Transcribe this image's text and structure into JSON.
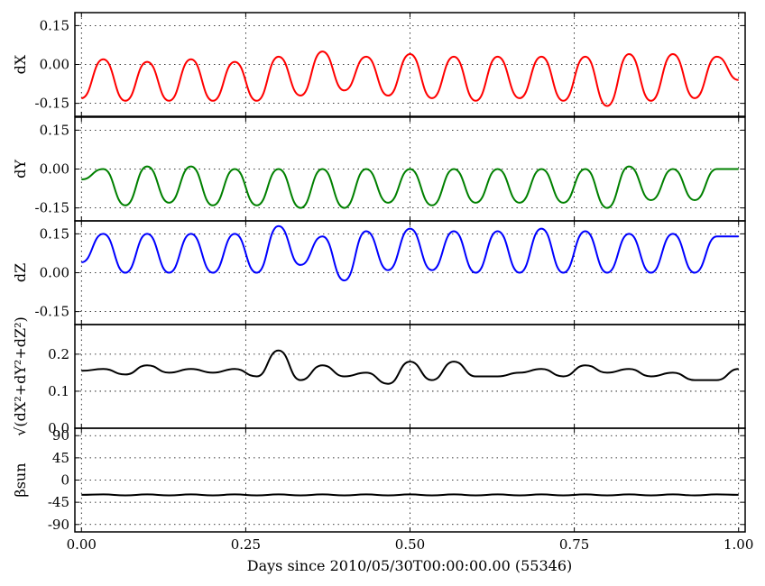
{
  "chart_data": {
    "type": "line",
    "xlabel": "Days since 2010/05/30T00:00:00.00 (55346)",
    "x_ticks": [
      "0.00",
      "0.25",
      "0.50",
      "0.75",
      "1.00"
    ],
    "xlim": [
      -0.01,
      1.01
    ],
    "grid": true,
    "panels": [
      {
        "ylabel": "dX",
        "ylim": [
          -0.2,
          0.2
        ],
        "y_ticks": [
          "0.15",
          "0.00",
          "-0.15"
        ],
        "y_tick_values": [
          0.15,
          0.0,
          -0.15
        ],
        "color": "#ff0000",
        "x": [
          0.0,
          0.0333,
          0.0667,
          0.1,
          0.1333,
          0.1667,
          0.2,
          0.2333,
          0.2667,
          0.3,
          0.3333,
          0.3667,
          0.4,
          0.4333,
          0.4667,
          0.5,
          0.5333,
          0.5667,
          0.6,
          0.6333,
          0.6667,
          0.7,
          0.7333,
          0.7667,
          0.8,
          0.8333,
          0.8667,
          0.9,
          0.9333,
          0.9667,
          1.0
        ],
        "values": [
          -0.13,
          0.02,
          -0.14,
          0.01,
          -0.14,
          0.02,
          -0.14,
          0.01,
          -0.14,
          0.03,
          -0.12,
          0.05,
          -0.1,
          0.03,
          -0.12,
          0.04,
          -0.13,
          0.03,
          -0.14,
          0.03,
          -0.13,
          0.03,
          -0.14,
          0.03,
          -0.16,
          0.04,
          -0.14,
          0.04,
          -0.13,
          0.03,
          -0.06
        ]
      },
      {
        "ylabel": "dY",
        "ylim": [
          -0.2,
          0.2
        ],
        "y_ticks": [
          "0.15",
          "0.00",
          "-0.15"
        ],
        "y_tick_values": [
          0.15,
          0.0,
          -0.15
        ],
        "color": "#008000",
        "x": [
          0.0,
          0.0333,
          0.0667,
          0.1,
          0.1333,
          0.1667,
          0.2,
          0.2333,
          0.2667,
          0.3,
          0.3333,
          0.3667,
          0.4,
          0.4333,
          0.4667,
          0.5,
          0.5333,
          0.5667,
          0.6,
          0.6333,
          0.6667,
          0.7,
          0.7333,
          0.7667,
          0.8,
          0.8333,
          0.8667,
          0.9,
          0.9333,
          0.9667,
          1.0
        ],
        "values": [
          -0.04,
          0.0,
          -0.14,
          0.01,
          -0.13,
          0.01,
          -0.14,
          0.0,
          -0.14,
          0.0,
          -0.15,
          0.0,
          -0.15,
          0.0,
          -0.13,
          0.0,
          -0.14,
          0.0,
          -0.13,
          0.0,
          -0.13,
          0.0,
          -0.13,
          0.0,
          -0.15,
          0.01,
          -0.12,
          0.0,
          -0.12,
          0.0,
          0.0
        ]
      },
      {
        "ylabel": "dZ",
        "ylim": [
          -0.2,
          0.2
        ],
        "y_ticks": [
          "0.15",
          "0.00",
          "-0.15"
        ],
        "y_tick_values": [
          0.15,
          0.0,
          -0.15
        ],
        "color": "#0000ff",
        "x": [
          0.0,
          0.0333,
          0.0667,
          0.1,
          0.1333,
          0.1667,
          0.2,
          0.2333,
          0.2667,
          0.3,
          0.3333,
          0.3667,
          0.4,
          0.4333,
          0.4667,
          0.5,
          0.5333,
          0.5667,
          0.6,
          0.6333,
          0.6667,
          0.7,
          0.7333,
          0.7667,
          0.8,
          0.8333,
          0.8667,
          0.9,
          0.9333,
          0.9667,
          1.0
        ],
        "values": [
          0.04,
          0.15,
          0.0,
          0.15,
          0.0,
          0.15,
          0.0,
          0.15,
          0.0,
          0.18,
          0.03,
          0.14,
          -0.03,
          0.16,
          0.01,
          0.17,
          0.01,
          0.16,
          0.0,
          0.16,
          0.0,
          0.17,
          0.0,
          0.16,
          0.0,
          0.15,
          0.0,
          0.15,
          0.0,
          0.14,
          0.14
        ]
      },
      {
        "ylabel": "√(dX²+dY²+dZ²)",
        "ylim": [
          0.0,
          0.28
        ],
        "y_ticks": [
          "0.2",
          "0.1",
          "0.0"
        ],
        "y_tick_values": [
          0.2,
          0.1,
          0.0
        ],
        "color": "#000000",
        "x": [
          0.0,
          0.0333,
          0.0667,
          0.1,
          0.1333,
          0.1667,
          0.2,
          0.2333,
          0.2667,
          0.3,
          0.3333,
          0.3667,
          0.4,
          0.4333,
          0.4667,
          0.5,
          0.5333,
          0.5667,
          0.6,
          0.6333,
          0.6667,
          0.7,
          0.7333,
          0.7667,
          0.8,
          0.8333,
          0.8667,
          0.9,
          0.9333,
          0.9667,
          1.0
        ],
        "values": [
          0.155,
          0.16,
          0.145,
          0.17,
          0.15,
          0.16,
          0.15,
          0.16,
          0.14,
          0.21,
          0.13,
          0.17,
          0.14,
          0.15,
          0.12,
          0.18,
          0.13,
          0.18,
          0.14,
          0.14,
          0.15,
          0.16,
          0.14,
          0.17,
          0.15,
          0.16,
          0.14,
          0.15,
          0.13,
          0.13,
          0.16
        ]
      },
      {
        "ylabel": "βsun",
        "ylim": [
          -105,
          105
        ],
        "y_ticks": [
          "90",
          "45",
          "0",
          "-45",
          "-90"
        ],
        "y_tick_values": [
          90,
          45,
          0,
          -45,
          -90
        ],
        "color": "#000000",
        "x": [
          0.0,
          0.0333,
          0.0667,
          0.1,
          0.1333,
          0.1667,
          0.2,
          0.2333,
          0.2667,
          0.3,
          0.3333,
          0.3667,
          0.4,
          0.4333,
          0.4667,
          0.5,
          0.5333,
          0.5667,
          0.6,
          0.6333,
          0.6667,
          0.7,
          0.7333,
          0.7667,
          0.8,
          0.8333,
          0.8667,
          0.9,
          0.9333,
          0.9667,
          1.0
        ],
        "values": [
          -30,
          -29,
          -31,
          -29,
          -31,
          -29,
          -31,
          -29,
          -31,
          -29,
          -31,
          -29,
          -31,
          -29,
          -31,
          -29,
          -31,
          -29,
          -31,
          -29,
          -31,
          -29,
          -31,
          -29,
          -31,
          -29,
          -31,
          -29,
          -31,
          -29,
          -30
        ]
      }
    ]
  }
}
